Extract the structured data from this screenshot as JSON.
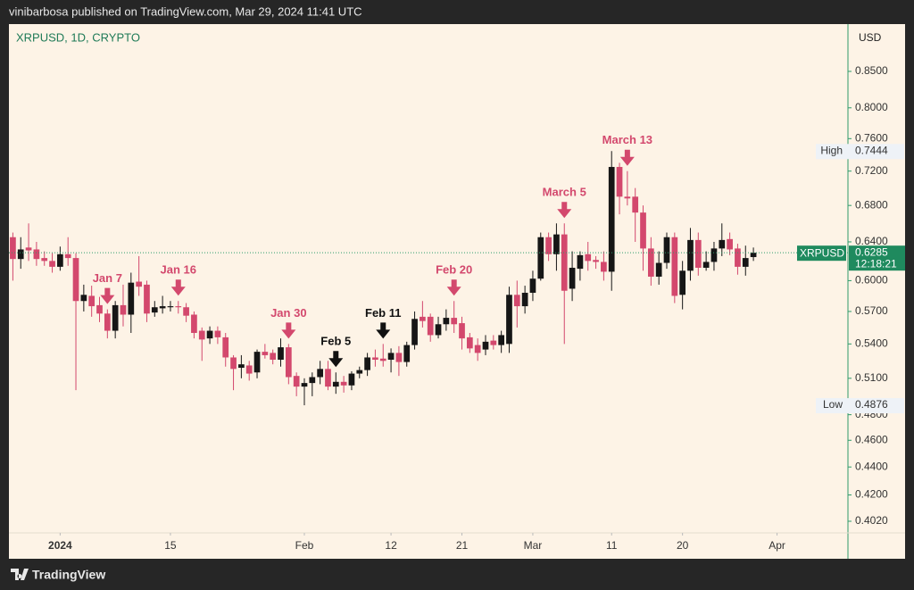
{
  "header": {
    "text": "vinibarbosa published on TradingView.com, Mar 29, 2024 11:41 UTC"
  },
  "footer": {
    "brand": "TradingView"
  },
  "chart_data": {
    "type": "candlestick",
    "title": "XRPUSD, 1D, CRYPTO",
    "currency": "USD",
    "symbol": "XRPUSD",
    "last_price": {
      "value": 0.6285,
      "label": "0.6285"
    },
    "countdown": "12:18:21",
    "high_marker": {
      "text": "High",
      "value": 0.7444,
      "label": "0.7444"
    },
    "low_marker": {
      "text": "Low",
      "value": 0.4876,
      "label": "0.4876"
    },
    "up_color": "#161616",
    "down_color": "#d3486d",
    "log_scale": true,
    "grid": false,
    "x": [
      "2023-12-26",
      "2023-12-27",
      "2023-12-28",
      "2023-12-29",
      "2023-12-30",
      "2023-12-31",
      "2024-01-01",
      "2024-01-02",
      "2024-01-03",
      "2024-01-04",
      "2024-01-05",
      "2024-01-06",
      "2024-01-07",
      "2024-01-08",
      "2024-01-09",
      "2024-01-10",
      "2024-01-11",
      "2024-01-12",
      "2024-01-13",
      "2024-01-14",
      "2024-01-15",
      "2024-01-16",
      "2024-01-17",
      "2024-01-18",
      "2024-01-19",
      "2024-01-20",
      "2024-01-21",
      "2024-01-22",
      "2024-01-23",
      "2024-01-24",
      "2024-01-25",
      "2024-01-26",
      "2024-01-27",
      "2024-01-28",
      "2024-01-29",
      "2024-01-30",
      "2024-01-31",
      "2024-02-01",
      "2024-02-02",
      "2024-02-03",
      "2024-02-04",
      "2024-02-05",
      "2024-02-06",
      "2024-02-07",
      "2024-02-08",
      "2024-02-09",
      "2024-02-10",
      "2024-02-11",
      "2024-02-12",
      "2024-02-13",
      "2024-02-14",
      "2024-02-15",
      "2024-02-16",
      "2024-02-17",
      "2024-02-18",
      "2024-02-19",
      "2024-02-20",
      "2024-02-21",
      "2024-02-22",
      "2024-02-23",
      "2024-02-24",
      "2024-02-25",
      "2024-02-26",
      "2024-02-27",
      "2024-02-28",
      "2024-02-29",
      "2024-03-01",
      "2024-03-02",
      "2024-03-03",
      "2024-03-04",
      "2024-03-05",
      "2024-03-06",
      "2024-03-07",
      "2024-03-08",
      "2024-03-09",
      "2024-03-10",
      "2024-03-11",
      "2024-03-12",
      "2024-03-13",
      "2024-03-14",
      "2024-03-15",
      "2024-03-16",
      "2024-03-17",
      "2024-03-18",
      "2024-03-19",
      "2024-03-20",
      "2024-03-21",
      "2024-03-22",
      "2024-03-23",
      "2024-03-24",
      "2024-03-25",
      "2024-03-26",
      "2024-03-27",
      "2024-03-28",
      "2024-03-29"
    ],
    "open": [
      0.645,
      0.622,
      0.634,
      0.632,
      0.623,
      0.62,
      0.614,
      0.627,
      0.623,
      0.58,
      0.585,
      0.576,
      0.568,
      0.552,
      0.576,
      0.567,
      0.599,
      0.596,
      0.569,
      0.573,
      0.574,
      0.575,
      0.574,
      0.567,
      0.552,
      0.545,
      0.552,
      0.546,
      0.528,
      0.519,
      0.521,
      0.515,
      0.533,
      0.532,
      0.526,
      0.537,
      0.512,
      0.503,
      0.506,
      0.511,
      0.518,
      0.503,
      0.507,
      0.504,
      0.514,
      0.517,
      0.528,
      0.527,
      0.526,
      0.532,
      0.524,
      0.539,
      0.565,
      0.565,
      0.548,
      0.558,
      0.564,
      0.559,
      0.546,
      0.539,
      0.535,
      0.543,
      0.539,
      0.54,
      0.586,
      0.575,
      0.588,
      0.602,
      0.645,
      0.627,
      0.648,
      0.592,
      0.612,
      0.627,
      0.621,
      0.619,
      0.609,
      0.725,
      0.69,
      0.69,
      0.672,
      0.633,
      0.604,
      0.618,
      0.645,
      0.586,
      0.61,
      0.642,
      0.613,
      0.619,
      0.633,
      0.643,
      0.633,
      0.614,
      0.624
    ],
    "high": [
      0.65,
      0.645,
      0.66,
      0.64,
      0.63,
      0.628,
      0.635,
      0.645,
      0.628,
      0.596,
      0.595,
      0.584,
      0.572,
      0.58,
      0.596,
      0.608,
      0.625,
      0.6,
      0.58,
      0.585,
      0.58,
      0.58,
      0.578,
      0.57,
      0.555,
      0.556,
      0.556,
      0.55,
      0.53,
      0.53,
      0.525,
      0.535,
      0.54,
      0.535,
      0.545,
      0.54,
      0.515,
      0.51,
      0.515,
      0.525,
      0.525,
      0.515,
      0.512,
      0.516,
      0.52,
      0.532,
      0.535,
      0.54,
      0.536,
      0.538,
      0.542,
      0.57,
      0.58,
      0.568,
      0.565,
      0.572,
      0.58,
      0.565,
      0.55,
      0.545,
      0.548,
      0.548,
      0.552,
      0.594,
      0.6,
      0.595,
      0.61,
      0.65,
      0.65,
      0.66,
      0.66,
      0.63,
      0.63,
      0.64,
      0.625,
      0.63,
      0.7444,
      0.73,
      0.72,
      0.7,
      0.68,
      0.645,
      0.63,
      0.65,
      0.65,
      0.62,
      0.655,
      0.65,
      0.63,
      0.64,
      0.66,
      0.65,
      0.638,
      0.636,
      0.634
    ],
    "low": [
      0.6,
      0.612,
      0.62,
      0.615,
      0.615,
      0.608,
      0.61,
      0.615,
      0.5,
      0.57,
      0.565,
      0.56,
      0.545,
      0.545,
      0.556,
      0.55,
      0.585,
      0.56,
      0.565,
      0.568,
      0.57,
      0.568,
      0.56,
      0.545,
      0.525,
      0.54,
      0.54,
      0.52,
      0.5,
      0.51,
      0.508,
      0.51,
      0.527,
      0.522,
      0.52,
      0.505,
      0.495,
      0.4876,
      0.495,
      0.505,
      0.5,
      0.497,
      0.498,
      0.5,
      0.51,
      0.512,
      0.52,
      0.52,
      0.515,
      0.512,
      0.52,
      0.535,
      0.555,
      0.542,
      0.545,
      0.552,
      0.55,
      0.535,
      0.532,
      0.525,
      0.53,
      0.535,
      0.532,
      0.532,
      0.555,
      0.568,
      0.58,
      0.6,
      0.62,
      0.61,
      0.54,
      0.58,
      0.6,
      0.61,
      0.612,
      0.6,
      0.59,
      0.67,
      0.68,
      0.64,
      0.61,
      0.595,
      0.596,
      0.612,
      0.578,
      0.572,
      0.6,
      0.605,
      0.61,
      0.61,
      0.625,
      0.626,
      0.606,
      0.605,
      0.62
    ],
    "close": [
      0.622,
      0.632,
      0.631,
      0.622,
      0.62,
      0.614,
      0.627,
      0.623,
      0.58,
      0.586,
      0.575,
      0.568,
      0.552,
      0.576,
      0.567,
      0.598,
      0.594,
      0.568,
      0.574,
      0.575,
      0.575,
      0.574,
      0.566,
      0.55,
      0.544,
      0.552,
      0.546,
      0.528,
      0.518,
      0.522,
      0.514,
      0.533,
      0.53,
      0.526,
      0.537,
      0.511,
      0.503,
      0.506,
      0.511,
      0.518,
      0.503,
      0.507,
      0.504,
      0.514,
      0.517,
      0.528,
      0.526,
      0.525,
      0.532,
      0.524,
      0.539,
      0.563,
      0.561,
      0.548,
      0.558,
      0.564,
      0.558,
      0.545,
      0.536,
      0.532,
      0.542,
      0.539,
      0.548,
      0.586,
      0.575,
      0.588,
      0.602,
      0.645,
      0.627,
      0.648,
      0.59,
      0.613,
      0.626,
      0.62,
      0.619,
      0.609,
      0.725,
      0.69,
      0.688,
      0.672,
      0.633,
      0.604,
      0.618,
      0.645,
      0.585,
      0.61,
      0.642,
      0.613,
      0.619,
      0.633,
      0.642,
      0.632,
      0.614,
      0.623,
      0.6285
    ],
    "xlim": [
      "2023-12-25T12:00Z",
      "2024-04-10"
    ],
    "xticks": [
      {
        "value": "2024-01-01",
        "label": "2024"
      },
      {
        "value": "2024-01-15",
        "label": "15"
      },
      {
        "value": "2024-02-01",
        "label": "Feb"
      },
      {
        "value": "2024-02-12",
        "label": "12"
      },
      {
        "value": "2024-02-21",
        "label": "21"
      },
      {
        "value": "2024-03-01",
        "label": "Mar"
      },
      {
        "value": "2024-03-11",
        "label": "11"
      },
      {
        "value": "2024-03-20",
        "label": "20"
      },
      {
        "value": "2024-04-01",
        "label": "Apr"
      }
    ],
    "ylim": [
      0.3943,
      0.9196
    ],
    "yticks": [
      {
        "value": 0.85,
        "label": "0.8500"
      },
      {
        "value": 0.8,
        "label": "0.8000"
      },
      {
        "value": 0.76,
        "label": "0.7600"
      },
      {
        "value": 0.72,
        "label": "0.7200"
      },
      {
        "value": 0.68,
        "label": "0.6800"
      },
      {
        "value": 0.64,
        "label": "0.6400"
      },
      {
        "value": 0.6,
        "label": "0.6000"
      },
      {
        "value": 0.57,
        "label": "0.5700"
      },
      {
        "value": 0.54,
        "label": "0.5400"
      },
      {
        "value": 0.51,
        "label": "0.5100"
      },
      {
        "value": 0.48,
        "label": "0.4800"
      },
      {
        "value": 0.46,
        "label": "0.4600"
      },
      {
        "value": 0.44,
        "label": "0.4400"
      },
      {
        "value": 0.42,
        "label": "0.4200"
      },
      {
        "value": 0.402,
        "label": "0.4020"
      }
    ],
    "annotations": [
      {
        "text": "Jan 7",
        "x": "2024-01-07",
        "color": "#d3486d"
      },
      {
        "text": "Jan 16",
        "x": "2024-01-16",
        "color": "#d3486d"
      },
      {
        "text": "Jan 30",
        "x": "2024-01-30",
        "color": "#d3486d"
      },
      {
        "text": "Feb 5",
        "x": "2024-02-05",
        "color": "#111111"
      },
      {
        "text": "Feb 11",
        "x": "2024-02-11",
        "color": "#111111"
      },
      {
        "text": "Feb 20",
        "x": "2024-02-20",
        "color": "#d3486d"
      },
      {
        "text": "March 5",
        "x": "2024-03-05",
        "color": "#d3486d"
      },
      {
        "text": "March 13",
        "x": "2024-03-13",
        "color": "#d3486d"
      }
    ]
  }
}
